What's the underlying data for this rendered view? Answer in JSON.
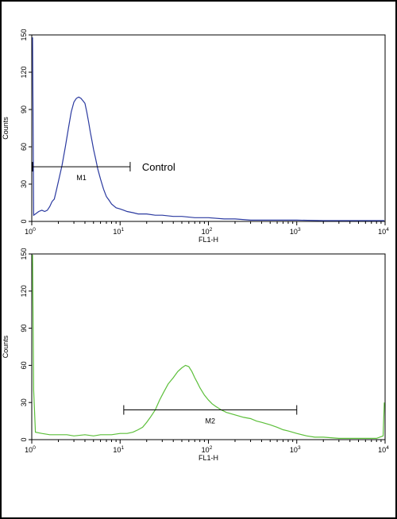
{
  "chart_data": [
    {
      "type": "line",
      "title": "",
      "xlabel": "FL1-H",
      "ylabel": "Counts",
      "x_scale": "log",
      "xlim": [
        1,
        10000
      ],
      "ylim": [
        0,
        150
      ],
      "x_ticks": [
        {
          "base": "10",
          "exp": "0"
        },
        {
          "base": "10",
          "exp": "1"
        },
        {
          "base": "10",
          "exp": "2"
        },
        {
          "base": "10",
          "exp": "3"
        },
        {
          "base": "10",
          "exp": "4"
        }
      ],
      "y_ticks": [
        "0",
        "30",
        "60",
        "90",
        "120",
        "150"
      ],
      "grid": false,
      "color": "#2b3aa0",
      "series": [
        {
          "x": [
            1.0,
            1.05,
            1.1,
            1.2,
            1.3,
            1.4,
            1.5,
            1.6,
            1.7,
            1.8,
            1.9,
            2.0,
            2.2,
            2.4,
            2.6,
            2.8,
            3.0,
            3.2,
            3.4,
            3.6,
            3.8,
            4.0,
            4.2,
            4.4,
            4.6,
            4.8,
            5.0,
            5.3,
            5.6,
            6.0,
            6.5,
            7.0,
            7.5,
            8.0,
            9.0,
            10.0,
            11.0,
            12.0,
            14.0,
            16.0,
            20.0,
            25.0,
            30.0,
            40.0,
            50.0,
            70.0,
            100.0,
            150.0,
            200.0,
            300.0,
            500.0,
            1000.0,
            2000.0,
            5000.0,
            10000.0
          ],
          "y": [
            148,
            5,
            6,
            8,
            9,
            8,
            9,
            12,
            16,
            18,
            25,
            32,
            45,
            60,
            75,
            88,
            96,
            99,
            100,
            99,
            97,
            95,
            88,
            80,
            72,
            65,
            58,
            50,
            42,
            34,
            26,
            20,
            17,
            14,
            11,
            10,
            9,
            8,
            7,
            6,
            6,
            5,
            5,
            4,
            4,
            3,
            3,
            2,
            2,
            1,
            1,
            1,
            0,
            0,
            0
          ]
        }
      ],
      "markers": [
        {
          "label": "M1",
          "x_start": 1.0,
          "x_end": 13.0,
          "y": 44
        }
      ],
      "annotations": [
        {
          "text": "Control",
          "x": 15.0,
          "y": 44
        }
      ]
    },
    {
      "type": "line",
      "title": "",
      "xlabel": "FL1-H",
      "ylabel": "Counts",
      "x_scale": "log",
      "xlim": [
        1,
        10000
      ],
      "ylim": [
        0,
        150
      ],
      "x_ticks": [
        {
          "base": "10",
          "exp": "0"
        },
        {
          "base": "10",
          "exp": "1"
        },
        {
          "base": "10",
          "exp": "2"
        },
        {
          "base": "10",
          "exp": "3"
        },
        {
          "base": "10",
          "exp": "4"
        }
      ],
      "y_ticks": [
        "0",
        "30",
        "60",
        "90",
        "120",
        "150"
      ],
      "grid": false,
      "color": "#5cbf3a",
      "series": [
        {
          "x": [
            1.0,
            1.05,
            1.1,
            1.3,
            1.6,
            2.0,
            2.5,
            3.0,
            4.0,
            5.0,
            6.0,
            8.0,
            10.0,
            12.0,
            14.0,
            16.0,
            18.0,
            20.0,
            22.0,
            25.0,
            28.0,
            31.0,
            35.0,
            40.0,
            45.0,
            50.0,
            55.0,
            60.0,
            65.0,
            70.0,
            75.0,
            80.0,
            90.0,
            100.0,
            110.0,
            120.0,
            140.0,
            160.0,
            200.0,
            250.0,
            300.0,
            350.0,
            400.0,
            500.0,
            600.0,
            700.0,
            800.0,
            1000.0,
            1300.0,
            1600.0,
            2000.0,
            3000.0,
            5000.0,
            8000.0,
            9500.0,
            9800.0,
            10000.0
          ],
          "y": [
            150,
            40,
            6,
            5,
            4,
            4,
            4,
            3,
            4,
            3,
            4,
            4,
            5,
            5,
            6,
            8,
            10,
            14,
            18,
            24,
            32,
            38,
            45,
            50,
            55,
            58,
            60,
            59,
            55,
            50,
            46,
            42,
            36,
            32,
            29,
            27,
            24,
            22,
            20,
            18,
            17,
            15,
            14,
            12,
            10,
            8,
            7,
            5,
            3,
            2,
            2,
            1,
            1,
            1,
            3,
            30,
            30
          ]
        }
      ],
      "markers": [
        {
          "label": "M2",
          "x_start": 11.0,
          "x_end": 1000.0,
          "y": 24
        }
      ],
      "annotations": []
    }
  ]
}
